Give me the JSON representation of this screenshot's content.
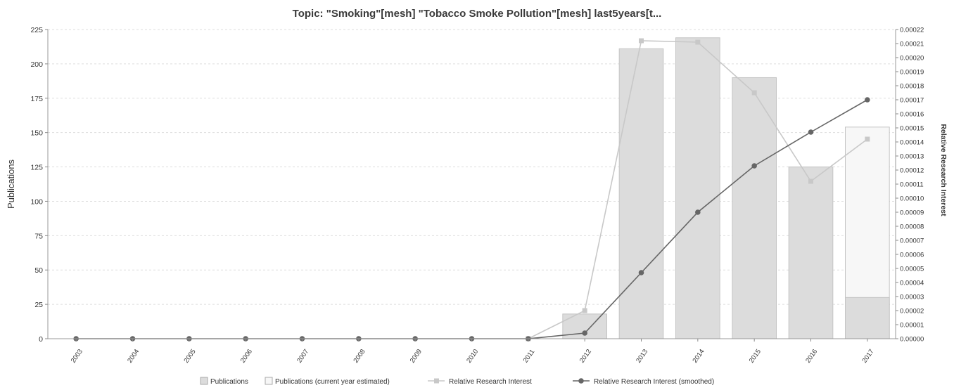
{
  "chart_data": {
    "type": "bar",
    "title": "Topic: \"Smoking\"[mesh] \"Tobacco Smoke Pollution\"[mesh] last5years[t...",
    "ylabel": "Publications",
    "y2label": "Relative Research Interest",
    "ylim": [
      0,
      225
    ],
    "yticks": [
      "0",
      "25",
      "50",
      "75",
      "100",
      "125",
      "150",
      "175",
      "200",
      "225"
    ],
    "y2lim": [
      0,
      0.00022
    ],
    "y2ticks": [
      "0.00000",
      "0.00001",
      "0.00002",
      "0.00003",
      "0.00004",
      "0.00005",
      "0.00006",
      "0.00007",
      "0.00008",
      "0.00009",
      "0.00010",
      "0.00011",
      "0.00012",
      "0.00013",
      "0.00014",
      "0.00015",
      "0.00016",
      "0.00017",
      "0.00018",
      "0.00019",
      "0.00020",
      "0.00021",
      "0.00022"
    ],
    "categories": [
      "2003",
      "2004",
      "2005",
      "2006",
      "2007",
      "2008",
      "2009",
      "2010",
      "2011",
      "2012",
      "2013",
      "2014",
      "2015",
      "2016",
      "2017"
    ],
    "grid": true,
    "legend_position": "bottom",
    "series": [
      {
        "name": "Publications",
        "type": "bar",
        "axis": "left",
        "color": "#dcdcdc",
        "values": [
          0,
          0,
          0,
          0,
          0,
          0,
          0,
          0,
          0,
          18,
          211,
          219,
          190,
          125,
          30
        ]
      },
      {
        "name": "Publications (current year estimated)",
        "type": "bar",
        "axis": "left",
        "color": "#f7f7f7",
        "values": [
          null,
          null,
          null,
          null,
          null,
          null,
          null,
          null,
          null,
          null,
          null,
          null,
          null,
          null,
          154
        ]
      },
      {
        "name": "Relative Research Interest",
        "type": "line",
        "axis": "right",
        "color": "#c8c8c8",
        "values": [
          null,
          null,
          null,
          null,
          null,
          null,
          null,
          null,
          0.0,
          2e-05,
          0.000212,
          0.000211,
          0.000175,
          0.000112,
          0.000142
        ]
      },
      {
        "name": "Relative Research Interest (smoothed)",
        "type": "line",
        "axis": "right",
        "color": "#666666",
        "values": [
          0,
          0,
          0,
          0,
          0,
          0,
          0,
          0,
          0,
          4e-06,
          4.7e-05,
          9e-05,
          0.000123,
          0.000147,
          0.00017
        ]
      }
    ]
  }
}
